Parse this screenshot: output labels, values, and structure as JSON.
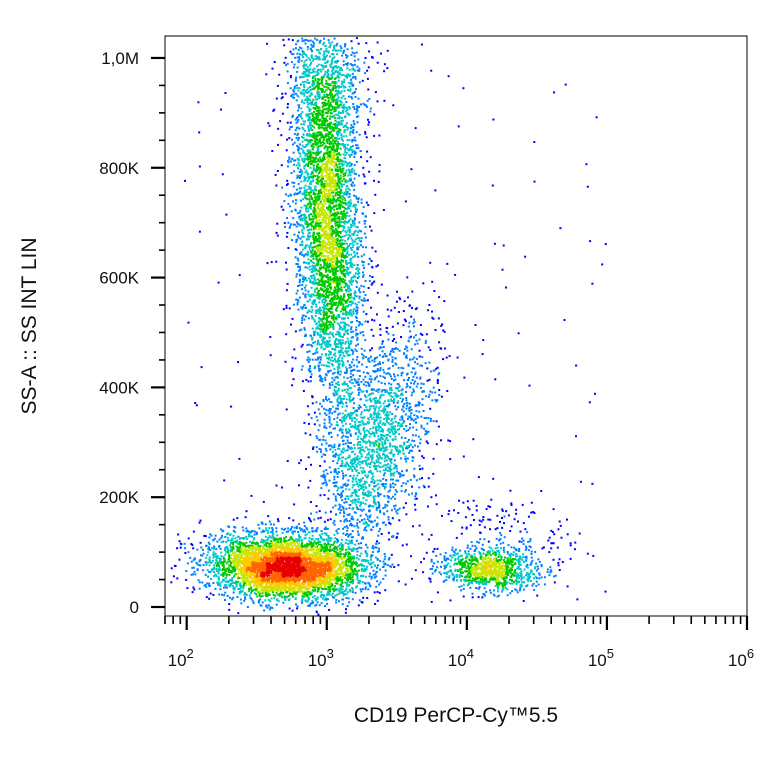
{
  "chart_data": {
    "type": "scatter",
    "subtype": "flow-cytometry density dot plot",
    "title": "",
    "xlabel": "CD19 PerCP-Cy™5.5",
    "ylabel": "SS-A :: SS INT LIN",
    "x_scale": "log",
    "xlim": [
      70,
      1000000
    ],
    "ylim": [
      0,
      1040000
    ],
    "grid": false,
    "legend": "none",
    "colormap": [
      "#0000ff",
      "#0080ff",
      "#00c8c8",
      "#00c800",
      "#c8e600",
      "#ffc800",
      "#ff6400",
      "#e60000"
    ],
    "x_ticks": [
      {
        "value": 100,
        "base": "10",
        "exp": "2"
      },
      {
        "value": 1000,
        "base": "10",
        "exp": "3"
      },
      {
        "value": 10000,
        "base": "10",
        "exp": "4"
      },
      {
        "value": 100000,
        "base": "10",
        "exp": "5"
      },
      {
        "value": 1000000,
        "base": "10",
        "exp": "6"
      }
    ],
    "y_ticks": [
      {
        "value": 0,
        "label": "0"
      },
      {
        "value": 200000,
        "label": "200K"
      },
      {
        "value": 400000,
        "label": "400K"
      },
      {
        "value": 600000,
        "label": "600K"
      },
      {
        "value": 800000,
        "label": "800K"
      },
      {
        "value": 1000000,
        "label": "1,0M"
      }
    ],
    "populations": [
      {
        "center_x": 500,
        "center_y": 75000,
        "count": 4200
      },
      {
        "center_x": 1000,
        "center_y": 700000,
        "count": 4000
      },
      {
        "center_x": 2200,
        "center_y": 300000,
        "count": 1800
      },
      {
        "center_x": 14000,
        "center_y": 70000,
        "count": 900
      }
    ]
  }
}
